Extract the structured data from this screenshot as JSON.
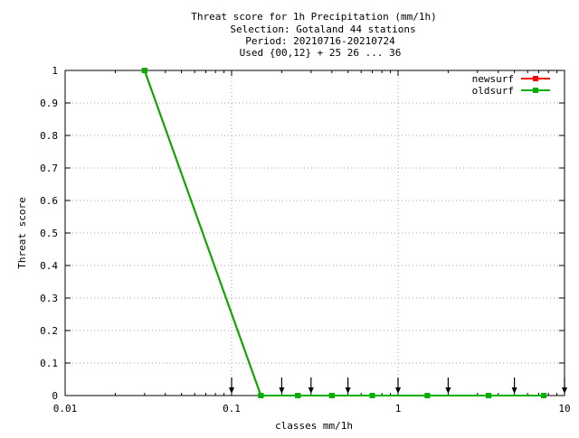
{
  "chart_data": {
    "type": "line",
    "title_lines": [
      "Threat score  for 1h Precipitation (mm/1h)",
      "Selection: Gotaland     44 stations",
      "Period: 20210716-20210724",
      "Used {00,12} + 25 26 ... 36"
    ],
    "xlabel": "classes mm/1h",
    "ylabel": "Threat score",
    "x_scale": "log",
    "xlim": [
      0.01,
      10
    ],
    "ylim": [
      0,
      1
    ],
    "x_ticks": [
      0.01,
      0.1,
      1,
      10
    ],
    "x_tick_labels": [
      "0.01",
      "0.1",
      "1",
      "10"
    ],
    "y_ticks": [
      0,
      0.1,
      0.2,
      0.3,
      0.4,
      0.5,
      0.6,
      0.7,
      0.8,
      0.9,
      1
    ],
    "y_tick_labels": [
      "0",
      "0.1",
      "0.2",
      "0.3",
      "0.4",
      "0.5",
      "0.6",
      "0.7",
      "0.8",
      "0.9",
      "1"
    ],
    "grid": true,
    "legend_position": "top-right",
    "series": [
      {
        "name": "newsurf",
        "color": "#ff0000",
        "x": [
          0.03,
          0.15,
          0.25,
          0.4,
          0.7,
          1.5,
          3.5,
          7.5
        ],
        "y": [
          1,
          0,
          0,
          0,
          0,
          0,
          0,
          0
        ]
      },
      {
        "name": "oldsurf",
        "color": "#00b000",
        "x": [
          0.03,
          0.15,
          0.25,
          0.4,
          0.7,
          1.5,
          3.5,
          7.5
        ],
        "y": [
          1,
          0,
          0,
          0,
          0,
          0,
          0,
          0
        ]
      }
    ],
    "class_markers": [
      0.1,
      0.2,
      0.3,
      0.5,
      1,
      2,
      5,
      10
    ]
  }
}
